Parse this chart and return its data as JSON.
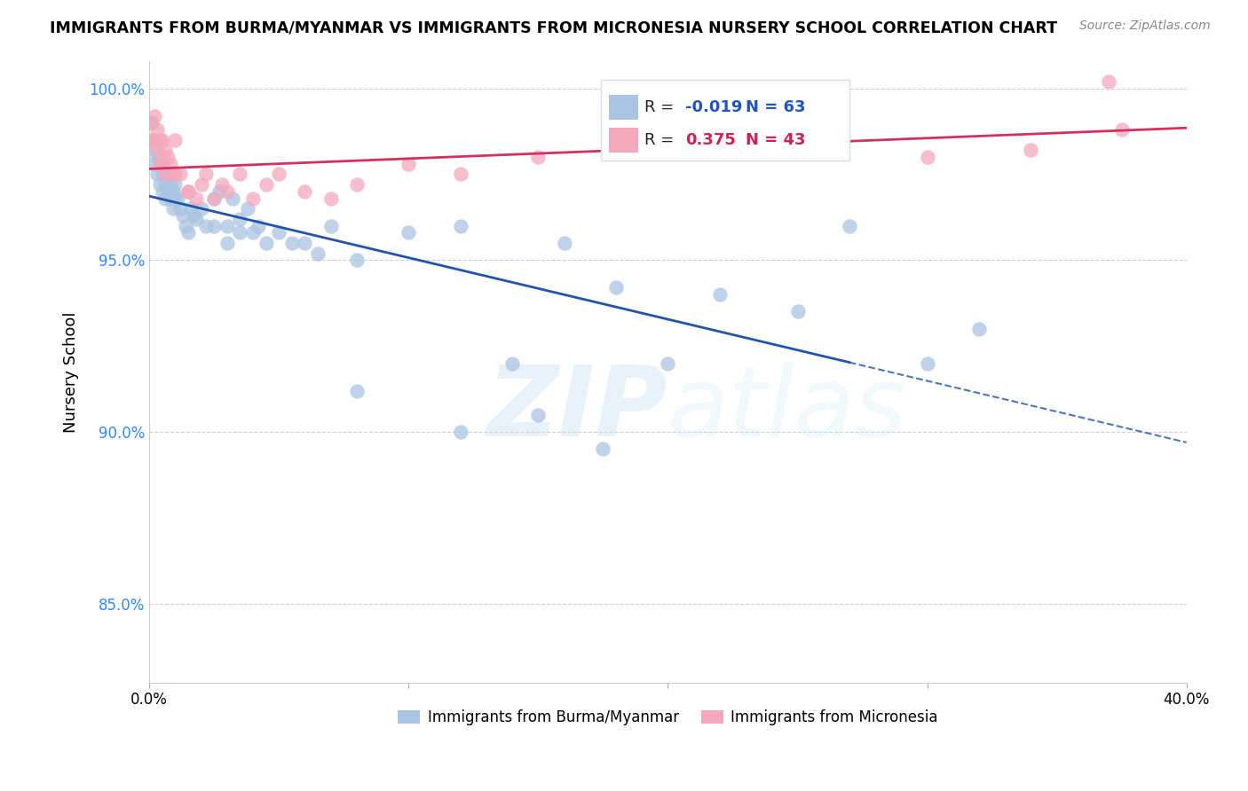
{
  "title": "IMMIGRANTS FROM BURMA/MYANMAR VS IMMIGRANTS FROM MICRONESIA NURSERY SCHOOL CORRELATION CHART",
  "source": "Source: ZipAtlas.com",
  "ylabel": "Nursery School",
  "xlim": [
    0.0,
    0.4
  ],
  "ylim": [
    0.827,
    1.008
  ],
  "yticks": [
    0.85,
    0.9,
    0.95,
    1.0
  ],
  "ytick_labels": [
    "85.0%",
    "90.0%",
    "95.0%",
    "100.0%"
  ],
  "blue_color": "#aac4e2",
  "pink_color": "#f4a8bc",
  "blue_line_color": "#2255aa",
  "pink_line_color": "#d43060",
  "R_blue": -0.019,
  "N_blue": 63,
  "R_pink": 0.375,
  "N_pink": 43,
  "blue_x": [
    0.001,
    0.001,
    0.002,
    0.002,
    0.003,
    0.003,
    0.004,
    0.004,
    0.005,
    0.005,
    0.006,
    0.006,
    0.007,
    0.007,
    0.008,
    0.008,
    0.009,
    0.009,
    0.01,
    0.01,
    0.011,
    0.012,
    0.013,
    0.014,
    0.015,
    0.016,
    0.017,
    0.018,
    0.02,
    0.022,
    0.025,
    0.025,
    0.027,
    0.03,
    0.03,
    0.032,
    0.035,
    0.035,
    0.038,
    0.04,
    0.042,
    0.045,
    0.05,
    0.055,
    0.06,
    0.065,
    0.07,
    0.08,
    0.1,
    0.12,
    0.14,
    0.16,
    0.18,
    0.22,
    0.25,
    0.27,
    0.3,
    0.32,
    0.15,
    0.2,
    0.08,
    0.12,
    0.175
  ],
  "blue_y": [
    0.99,
    0.985,
    0.982,
    0.978,
    0.98,
    0.975,
    0.978,
    0.972,
    0.975,
    0.97,
    0.972,
    0.968,
    0.975,
    0.97,
    0.972,
    0.968,
    0.97,
    0.965,
    0.972,
    0.968,
    0.968,
    0.965,
    0.963,
    0.96,
    0.958,
    0.965,
    0.963,
    0.962,
    0.965,
    0.96,
    0.968,
    0.96,
    0.97,
    0.96,
    0.955,
    0.968,
    0.958,
    0.962,
    0.965,
    0.958,
    0.96,
    0.955,
    0.958,
    0.955,
    0.955,
    0.952,
    0.96,
    0.95,
    0.958,
    0.96,
    0.92,
    0.955,
    0.942,
    0.94,
    0.935,
    0.96,
    0.92,
    0.93,
    0.905,
    0.92,
    0.912,
    0.9,
    0.895
  ],
  "pink_x": [
    0.001,
    0.001,
    0.002,
    0.002,
    0.003,
    0.003,
    0.004,
    0.004,
    0.005,
    0.005,
    0.006,
    0.006,
    0.007,
    0.008,
    0.009,
    0.01,
    0.012,
    0.015,
    0.018,
    0.02,
    0.022,
    0.025,
    0.028,
    0.03,
    0.035,
    0.04,
    0.045,
    0.05,
    0.06,
    0.07,
    0.08,
    0.1,
    0.12,
    0.15,
    0.18,
    0.22,
    0.26,
    0.3,
    0.34,
    0.375,
    0.01,
    0.015,
    0.37
  ],
  "pink_y": [
    0.99,
    0.985,
    0.992,
    0.985,
    0.988,
    0.982,
    0.985,
    0.978,
    0.985,
    0.978,
    0.982,
    0.975,
    0.98,
    0.978,
    0.975,
    0.985,
    0.975,
    0.97,
    0.968,
    0.972,
    0.975,
    0.968,
    0.972,
    0.97,
    0.975,
    0.968,
    0.972,
    0.975,
    0.97,
    0.968,
    0.972,
    0.978,
    0.975,
    0.98,
    0.985,
    0.99,
    0.985,
    0.98,
    0.982,
    0.988,
    0.975,
    0.97,
    1.002
  ],
  "watermark_zip": "ZIP",
  "watermark_atlas": "atlas",
  "blue_line_end_solid": 0.27,
  "blue_line_start_dash": 0.27
}
